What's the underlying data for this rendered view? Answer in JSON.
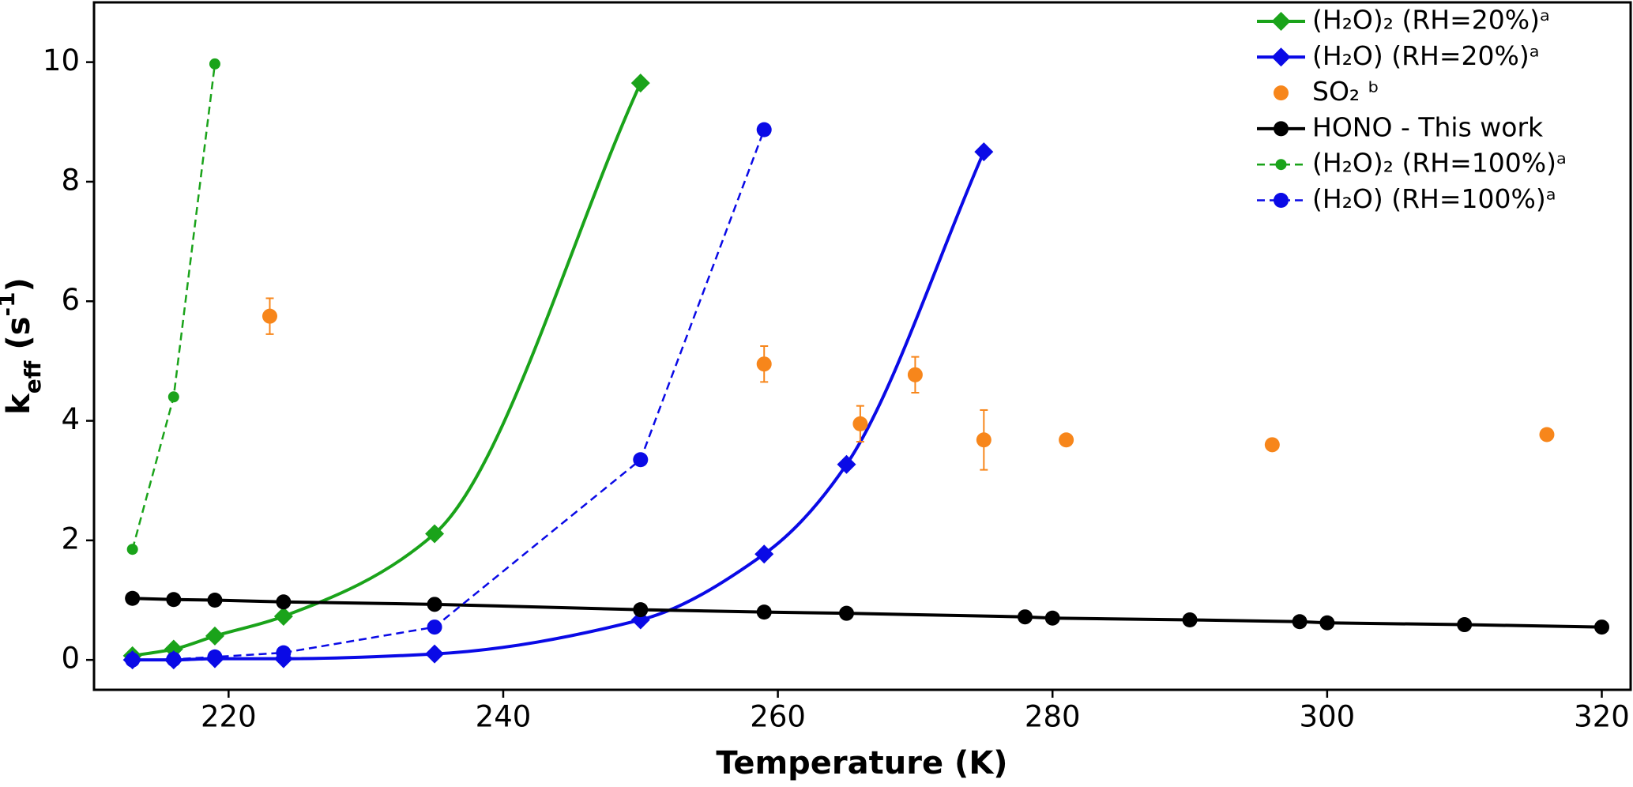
{
  "chart_data": {
    "type": "line",
    "xlabel": "Temperature (K)",
    "ylabel_parts": [
      "k",
      "eff",
      " (s",
      "-1",
      ")"
    ],
    "xlim": [
      210.2,
      322.1
    ],
    "ylim": [
      -0.5,
      11
    ],
    "xticks": [
      220,
      240,
      260,
      280,
      300,
      320
    ],
    "yticks": [
      0,
      2,
      4,
      6,
      8,
      10
    ],
    "legend": "upper right",
    "series": [
      {
        "name": "(H₂O)₂ (RH=20%)ᵃ",
        "color": "#1aa31a",
        "marker": "diamond",
        "linestyle": "solid",
        "smooth": true,
        "x": [
          213,
          216,
          219,
          224,
          235,
          250
        ],
        "values": [
          0.07,
          0.18,
          0.4,
          0.73,
          2.11,
          9.65
        ]
      },
      {
        "name": "(H₂O) (RH=20%)ᵃ",
        "color": "#0a0ae6",
        "marker": "diamond",
        "linestyle": "solid",
        "smooth": true,
        "x": [
          213,
          216,
          219,
          224,
          235,
          250,
          259,
          265,
          275
        ],
        "values": [
          0,
          0,
          0.02,
          0.02,
          0.1,
          0.67,
          1.77,
          3.27,
          8.5
        ]
      },
      {
        "name": "SO₂ ᵇ",
        "color": "#f7861b",
        "marker": "circle",
        "linestyle": "none",
        "smooth": false,
        "x": [
          223,
          259,
          266,
          270,
          275,
          281,
          296,
          316
        ],
        "values": [
          5.75,
          4.95,
          3.95,
          4.77,
          3.68,
          3.68,
          3.6,
          3.77
        ],
        "errors": [
          0.3,
          0.3,
          0.3,
          0.3,
          0.5,
          0.08,
          0.05,
          0.05
        ]
      },
      {
        "name": " HONO - This work",
        "color": "#000000",
        "marker": "circle",
        "linestyle": "solid",
        "smooth": false,
        "x": [
          213,
          216,
          219,
          224,
          235,
          250,
          259,
          265,
          278,
          280,
          290,
          298,
          300,
          310,
          320
        ],
        "values": [
          1.03,
          1.01,
          1.0,
          0.97,
          0.93,
          0.84,
          0.8,
          0.78,
          0.72,
          0.7,
          0.67,
          0.64,
          0.62,
          0.59,
          0.55
        ]
      },
      {
        "name": "(H₂O)₂ (RH=100%)ᵃ",
        "color": "#1aa31a",
        "marker": "small-circle",
        "linestyle": "dashed",
        "smooth": false,
        "x": [
          213,
          216,
          219
        ],
        "values": [
          1.85,
          4.4,
          9.97
        ]
      },
      {
        "name": "(H₂O) (RH=100%)ᵃ",
        "color": "#0a0ae6",
        "marker": "circle",
        "linestyle": "dashed",
        "smooth": false,
        "x": [
          213,
          216,
          219,
          224,
          235,
          250,
          259
        ],
        "values": [
          0,
          0.01,
          0.05,
          0.12,
          0.55,
          3.35,
          8.87
        ]
      }
    ]
  }
}
